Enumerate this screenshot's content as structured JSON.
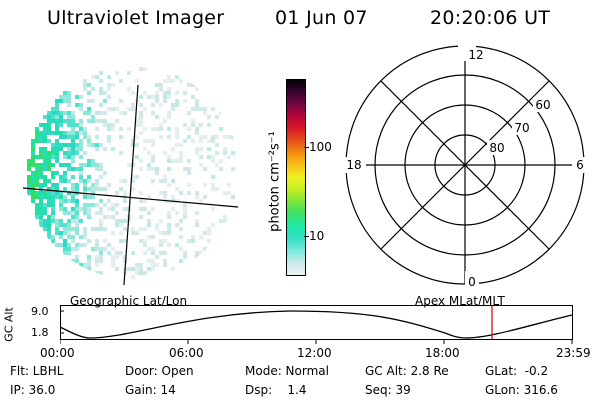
{
  "header": {
    "title": "Ultraviolet Imager",
    "date": "01 Jun 07",
    "time": "20:20:06 UT"
  },
  "colorbar": {
    "unit_label": "photon cm⁻²s⁻¹",
    "tick_labels": [
      "100",
      "10"
    ],
    "palette": [
      "#eef3f3",
      "#cfe9ea",
      "#7fe9de",
      "#38e0c4",
      "#1ee8a8",
      "#3ae26c",
      "#7ae53a",
      "#c2ee24",
      "#f0f024",
      "#f7c219",
      "#f48c10",
      "#e34e1a",
      "#d9182a",
      "#b4063a",
      "#72063f",
      "#32042e",
      "#000000"
    ]
  },
  "polar_plot": {
    "clock_labels": [
      "12",
      "18",
      "6",
      "0"
    ],
    "lat_labels": [
      "60",
      "70",
      "80"
    ]
  },
  "projection_labels": {
    "left": "Geographic Lat/Lon",
    "right": "Apex MLat/MLT"
  },
  "orbit_plot": {
    "ylabel": "GC Alt",
    "y_ticks": [
      "9.0",
      "1.8"
    ],
    "x_ticks": [
      "00:00",
      "06:00",
      "12:00",
      "18:00",
      "23:59"
    ],
    "current_time_color": "#e01010"
  },
  "info": {
    "flt": "Flt: LBHL",
    "ip": "IP: 36.0",
    "door": "Door: Open",
    "gain": "Gain: 14",
    "mode": "Mode: Normal",
    "dsp": "Dsp:    1.4",
    "gcalt": "GC Alt: 2.8 Re",
    "seq": "Seq: 39",
    "glat": "GLat:  -0.2",
    "glon": "GLon: 316.6"
  }
}
